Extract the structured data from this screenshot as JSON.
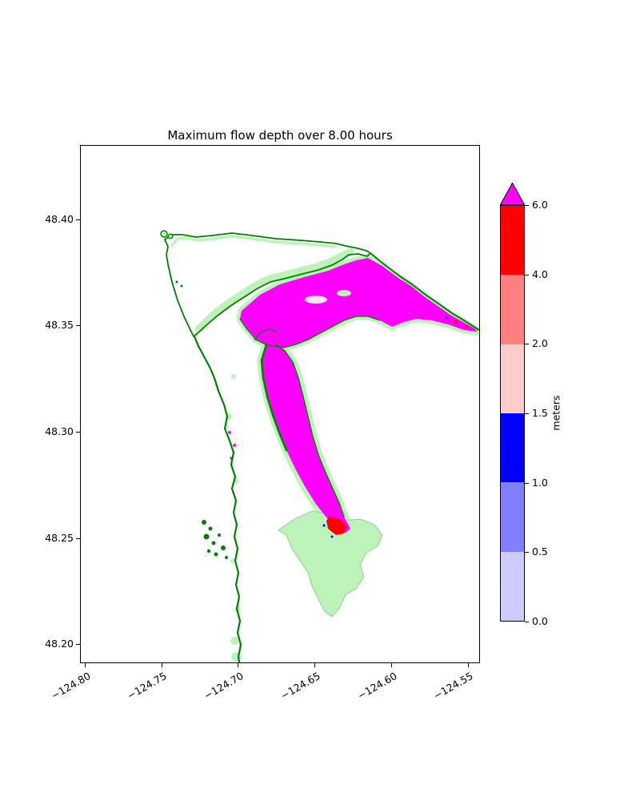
{
  "figure": {
    "title": "Maximum flow depth over 8.00 hours",
    "background": "#ffffff"
  },
  "chart_data": {
    "type": "heatmap",
    "title": "Maximum flow depth over 8.00 hours",
    "xlabel": "",
    "ylabel": "",
    "grid": false,
    "x_ticks": [
      "−124.80",
      "−124.75",
      "−124.70",
      "−124.65",
      "−124.60",
      "−124.55"
    ],
    "x_tick_values": [
      -124.8,
      -124.75,
      -124.7,
      -124.65,
      -124.6,
      -124.55
    ],
    "y_ticks": [
      "48.40",
      "48.35",
      "48.30",
      "48.25",
      "48.20"
    ],
    "y_tick_values": [
      48.4,
      48.35,
      48.3,
      48.25,
      48.2
    ],
    "xlim": [
      -124.803,
      -124.542
    ],
    "ylim": [
      48.191,
      48.435
    ],
    "x_tick_rotation_deg": 30,
    "colorbar": {
      "label": "meters",
      "position": "right",
      "orientation": "vertical",
      "spacing": "uniform",
      "extend": "max",
      "boundaries": [
        0.0,
        0.5,
        1.0,
        1.5,
        2.0,
        4.0,
        6.0
      ],
      "tick_labels": [
        "0.0",
        "0.5",
        "1.0",
        "1.5",
        "2.0",
        "4.0",
        "6.0"
      ],
      "segment_colors": [
        "#ccccff",
        "#8080ff",
        "#0000ff",
        "#ffcccc",
        "#ff8080",
        "#ff0000"
      ],
      "over_color": "#ff00ff"
    },
    "map_colors": {
      "shoreline_contour": "#008000",
      "low_land_fringe": "#bdf2b8",
      "flow_depth_over_6m": "#ff00ff",
      "flow_depth_4_to_6m": "#ff0000",
      "flow_depth_1_to_1p5m": "#0000ff",
      "background_water": "#ffffff"
    },
    "features": [
      "Peninsula landmass outlined in dark green at top of map (around 48.37, -124.72)",
      "Magenta region (flow depth > 6 m) filling the bay at about 48.355, -124.64 and a band along the northeast shoreline toward the map edge",
      "Narrow magenta band extending south through a river valley from 48.32 to 48.26 near -124.65",
      "Red patch (4-6 m) with small blue specks at the south end of the valley near 48.255, -124.61",
      "Large pale green low-lying area southeast of the valley mouth around 48.24, -124.62",
      "Wiggly dark green Pacific shoreline running down the left side near -124.71",
      "Cluster of small offshore rocks near 48.25, -124.73 and two small islands near 48.39, -124.73"
    ]
  }
}
